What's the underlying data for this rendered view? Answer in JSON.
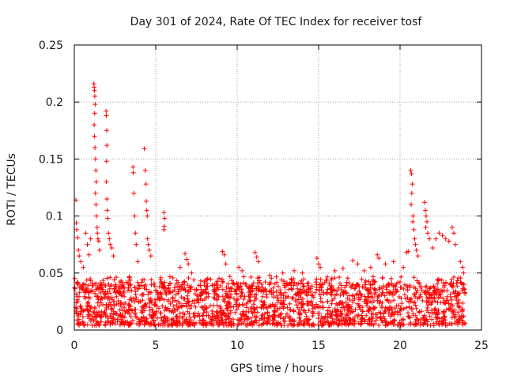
{
  "chart_data": {
    "type": "scatter",
    "title": "Day 301 of 2024, Rate Of TEC Index for receiver tosf",
    "xlabel": "GPS time / hours",
    "ylabel": "ROTI / TECUs",
    "xlim": [
      0,
      25
    ],
    "ylim": [
      0,
      0.25
    ],
    "x_ticks": [
      0,
      5,
      10,
      15,
      20,
      25
    ],
    "y_ticks": [
      0,
      0.05,
      0.1,
      0.15,
      0.2,
      0.25
    ],
    "x_tick_labels": [
      "0",
      "5",
      "10",
      "15",
      "20",
      "25"
    ],
    "y_tick_labels": [
      "0",
      "0.05",
      "0.1",
      "0.15",
      "0.2",
      "0.25"
    ],
    "grid": true,
    "marker": "+",
    "color": "#ff0000",
    "series": [
      {
        "name": "ROTI",
        "points": [
          [
            0.1,
            0.114
          ],
          [
            0.12,
            0.094
          ],
          [
            0.15,
            0.088
          ],
          [
            0.2,
            0.081
          ],
          [
            0.25,
            0.07
          ],
          [
            0.3,
            0.065
          ],
          [
            0.4,
            0.06
          ],
          [
            0.55,
            0.055
          ],
          [
            0.7,
            0.085
          ],
          [
            0.8,
            0.075
          ],
          [
            0.9,
            0.066
          ],
          [
            1.0,
            0.08
          ],
          [
            1.2,
            0.216
          ],
          [
            1.22,
            0.213
          ],
          [
            1.24,
            0.21
          ],
          [
            1.26,
            0.205
          ],
          [
            1.28,
            0.198
          ],
          [
            1.25,
            0.19
          ],
          [
            1.22,
            0.18
          ],
          [
            1.24,
            0.17
          ],
          [
            1.27,
            0.16
          ],
          [
            1.3,
            0.15
          ],
          [
            1.32,
            0.14
          ],
          [
            1.35,
            0.13
          ],
          [
            1.3,
            0.12
          ],
          [
            1.33,
            0.11
          ],
          [
            1.36,
            0.1
          ],
          [
            1.4,
            0.09
          ],
          [
            1.42,
            0.085
          ],
          [
            1.45,
            0.08
          ],
          [
            1.5,
            0.078
          ],
          [
            1.55,
            0.07
          ],
          [
            1.95,
            0.192
          ],
          [
            1.97,
            0.188
          ],
          [
            1.99,
            0.175
          ],
          [
            2.0,
            0.162
          ],
          [
            1.98,
            0.148
          ],
          [
            1.96,
            0.13
          ],
          [
            2.0,
            0.115
          ],
          [
            2.02,
            0.105
          ],
          [
            2.05,
            0.098
          ],
          [
            2.1,
            0.085
          ],
          [
            2.15,
            0.08
          ],
          [
            2.2,
            0.075
          ],
          [
            2.3,
            0.072
          ],
          [
            2.4,
            0.065
          ],
          [
            3.6,
            0.143
          ],
          [
            3.62,
            0.138
          ],
          [
            3.65,
            0.12
          ],
          [
            3.7,
            0.1
          ],
          [
            3.75,
            0.085
          ],
          [
            3.8,
            0.075
          ],
          [
            3.9,
            0.06
          ],
          [
            4.3,
            0.159
          ],
          [
            4.35,
            0.14
          ],
          [
            4.4,
            0.128
          ],
          [
            4.42,
            0.113
          ],
          [
            4.45,
            0.105
          ],
          [
            4.48,
            0.1
          ],
          [
            4.5,
            0.08
          ],
          [
            4.55,
            0.075
          ],
          [
            4.6,
            0.07
          ],
          [
            4.7,
            0.065
          ],
          [
            5.5,
            0.103
          ],
          [
            5.55,
            0.098
          ],
          [
            5.52,
            0.091
          ],
          [
            5.5,
            0.088
          ],
          [
            6.5,
            0.055
          ],
          [
            6.8,
            0.067
          ],
          [
            6.9,
            0.062
          ],
          [
            7.0,
            0.058
          ],
          [
            7.2,
            0.05
          ],
          [
            9.1,
            0.069
          ],
          [
            9.2,
            0.066
          ],
          [
            9.3,
            0.058
          ],
          [
            10.1,
            0.055
          ],
          [
            10.3,
            0.052
          ],
          [
            11.1,
            0.068
          ],
          [
            11.2,
            0.064
          ],
          [
            11.3,
            0.06
          ],
          [
            12.0,
            0.048
          ],
          [
            12.8,
            0.05
          ],
          [
            13.5,
            0.052
          ],
          [
            14.0,
            0.05
          ],
          [
            14.9,
            0.063
          ],
          [
            15.0,
            0.058
          ],
          [
            15.1,
            0.055
          ],
          [
            16.0,
            0.052
          ],
          [
            16.5,
            0.054
          ],
          [
            17.1,
            0.061
          ],
          [
            17.4,
            0.058
          ],
          [
            17.8,
            0.052
          ],
          [
            18.2,
            0.055
          ],
          [
            18.6,
            0.066
          ],
          [
            18.7,
            0.063
          ],
          [
            19.1,
            0.058
          ],
          [
            19.6,
            0.06
          ],
          [
            20.2,
            0.055
          ],
          [
            20.4,
            0.068
          ],
          [
            20.5,
            0.069
          ],
          [
            20.65,
            0.14
          ],
          [
            20.7,
            0.137
          ],
          [
            20.75,
            0.128
          ],
          [
            20.72,
            0.12
          ],
          [
            20.68,
            0.11
          ],
          [
            20.8,
            0.1
          ],
          [
            20.78,
            0.095
          ],
          [
            20.85,
            0.088
          ],
          [
            20.9,
            0.08
          ],
          [
            20.95,
            0.075
          ],
          [
            21.0,
            0.07
          ],
          [
            21.1,
            0.065
          ],
          [
            21.5,
            0.112
          ],
          [
            21.55,
            0.105
          ],
          [
            21.6,
            0.1
          ],
          [
            21.65,
            0.095
          ],
          [
            21.58,
            0.09
          ],
          [
            21.7,
            0.085
          ],
          [
            21.8,
            0.08
          ],
          [
            22.0,
            0.072
          ],
          [
            22.2,
            0.08
          ],
          [
            22.4,
            0.085
          ],
          [
            22.6,
            0.083
          ],
          [
            22.8,
            0.08
          ],
          [
            23.0,
            0.078
          ],
          [
            23.2,
            0.09
          ],
          [
            23.3,
            0.085
          ],
          [
            23.4,
            0.075
          ],
          [
            23.7,
            0.06
          ],
          [
            23.85,
            0.055
          ],
          [
            23.9,
            0.05
          ]
        ],
        "baseline": {
          "x_start": 0.0,
          "x_end": 24.0,
          "y_low": 0.004,
          "y_high": 0.042,
          "dense_points": 1800
        }
      }
    ]
  }
}
